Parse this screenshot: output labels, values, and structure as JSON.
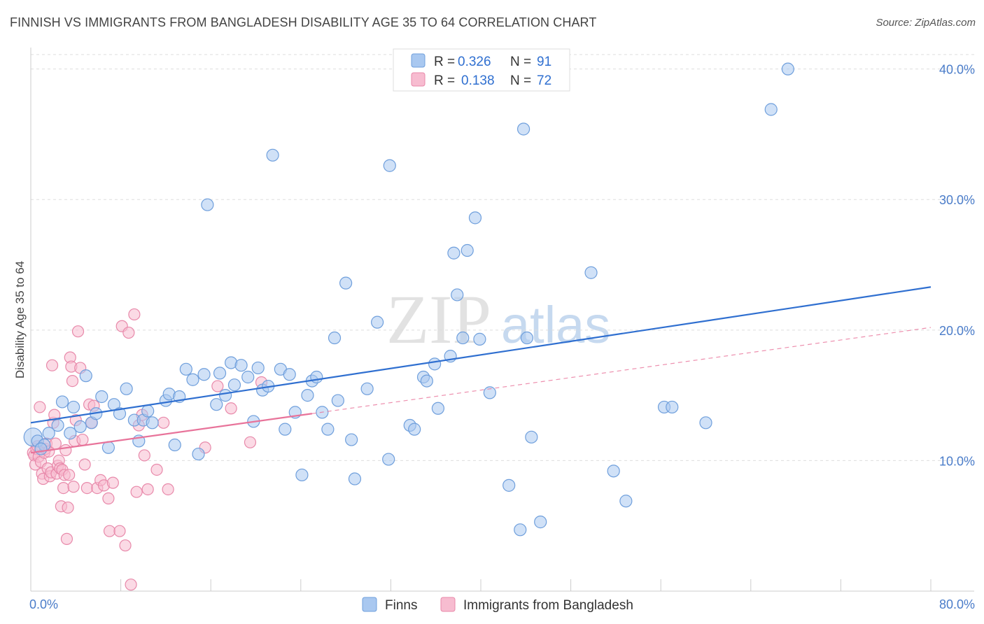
{
  "title": "FINNISH VS IMMIGRANTS FROM BANGLADESH DISABILITY AGE 35 TO 64 CORRELATION CHART",
  "source": "Source: ZipAtlas.com",
  "watermark": {
    "zip": "ZIP",
    "atlas": "atlas"
  },
  "colors": {
    "finns_fill": "#a9c8f0",
    "finns_stroke": "#6f9fdc",
    "finns_line": "#2f6fd0",
    "bangla_fill": "#f7bcd0",
    "bangla_stroke": "#e889aa",
    "bangla_line": "#e8739a",
    "grid": "#dddddd",
    "tick_text": "#4a7cc9"
  },
  "legend": {
    "row1": {
      "r_label": "R =",
      "r_value": "0.326",
      "n_label": "N =",
      "n_value": "91"
    },
    "row2": {
      "r_label": "R =",
      "r_value": "0.138",
      "n_label": "N =",
      "n_value": "72"
    }
  },
  "bottom_legend": {
    "finns": "Finns",
    "bangla": "Immigrants from Bangladesh"
  },
  "chart_data": {
    "type": "scatter",
    "title": "FINNISH VS IMMIGRANTS FROM BANGLADESH DISABILITY AGE 35 TO 64 CORRELATION CHART",
    "xlabel": "",
    "ylabel": "Disability Age 35 to 64",
    "xlim": [
      0,
      80
    ],
    "ylim": [
      0,
      41
    ],
    "x_tick_labels": [
      "0.0%",
      "80.0%"
    ],
    "y_ticks": [
      10,
      20,
      30,
      40
    ],
    "y_tick_labels": [
      "10.0%",
      "20.0%",
      "30.0%",
      "40.0%"
    ],
    "series": [
      {
        "name": "Finns",
        "R": 0.326,
        "N": 91,
        "trend": {
          "x0": 0,
          "y0": 12.9,
          "x1": 80,
          "y1": 23.3
        },
        "points": [
          [
            0.2,
            11.8
          ],
          [
            0.6,
            11.5
          ],
          [
            1.2,
            11.2
          ],
          [
            1.6,
            12.1
          ],
          [
            2.4,
            12.7
          ],
          [
            2.8,
            14.5
          ],
          [
            3.5,
            12.1
          ],
          [
            3.8,
            14.1
          ],
          [
            4.4,
            12.6
          ],
          [
            4.9,
            16.5
          ],
          [
            5.4,
            12.9
          ],
          [
            5.8,
            13.6
          ],
          [
            6.3,
            14.9
          ],
          [
            6.9,
            11.0
          ],
          [
            7.4,
            14.3
          ],
          [
            7.9,
            13.6
          ],
          [
            8.5,
            15.5
          ],
          [
            9.2,
            13.1
          ],
          [
            9.6,
            11.5
          ],
          [
            10.0,
            13.1
          ],
          [
            10.4,
            13.8
          ],
          [
            10.8,
            12.9
          ],
          [
            12.0,
            14.6
          ],
          [
            12.3,
            15.1
          ],
          [
            12.8,
            11.2
          ],
          [
            13.2,
            14.9
          ],
          [
            13.8,
            17.0
          ],
          [
            14.4,
            16.2
          ],
          [
            14.9,
            10.5
          ],
          [
            15.4,
            16.6
          ],
          [
            15.7,
            29.6
          ],
          [
            16.5,
            14.3
          ],
          [
            16.8,
            16.7
          ],
          [
            17.3,
            15.0
          ],
          [
            17.8,
            17.5
          ],
          [
            18.1,
            15.8
          ],
          [
            18.7,
            17.3
          ],
          [
            19.3,
            16.4
          ],
          [
            19.8,
            13.0
          ],
          [
            20.2,
            17.1
          ],
          [
            20.6,
            15.4
          ],
          [
            21.1,
            15.7
          ],
          [
            21.5,
            33.4
          ],
          [
            22.2,
            17.0
          ],
          [
            22.6,
            12.4
          ],
          [
            23.0,
            16.6
          ],
          [
            23.5,
            13.7
          ],
          [
            24.1,
            8.9
          ],
          [
            24.6,
            15.0
          ],
          [
            25.0,
            16.1
          ],
          [
            25.4,
            16.4
          ],
          [
            25.9,
            13.7
          ],
          [
            26.4,
            12.4
          ],
          [
            27.0,
            19.4
          ],
          [
            27.3,
            14.6
          ],
          [
            28.0,
            23.6
          ],
          [
            28.5,
            11.6
          ],
          [
            28.8,
            8.6
          ],
          [
            29.9,
            15.5
          ],
          [
            30.8,
            20.6
          ],
          [
            31.8,
            10.1
          ],
          [
            31.9,
            32.6
          ],
          [
            33.7,
            12.7
          ],
          [
            34.1,
            12.4
          ],
          [
            34.9,
            16.4
          ],
          [
            35.2,
            16.1
          ],
          [
            35.9,
            17.4
          ],
          [
            36.2,
            14.0
          ],
          [
            37.3,
            18.0
          ],
          [
            37.6,
            25.9
          ],
          [
            37.9,
            22.7
          ],
          [
            38.4,
            19.4
          ],
          [
            38.8,
            26.1
          ],
          [
            39.5,
            28.6
          ],
          [
            39.9,
            19.3
          ],
          [
            40.8,
            15.2
          ],
          [
            42.5,
            8.1
          ],
          [
            43.5,
            4.7
          ],
          [
            43.8,
            35.4
          ],
          [
            44.1,
            19.4
          ],
          [
            44.5,
            11.8
          ],
          [
            45.3,
            5.3
          ],
          [
            49.8,
            24.4
          ],
          [
            51.8,
            9.2
          ],
          [
            52.9,
            6.9
          ],
          [
            56.3,
            14.1
          ],
          [
            57.0,
            14.1
          ],
          [
            60.0,
            12.9
          ],
          [
            65.8,
            36.9
          ],
          [
            67.3,
            40.0
          ],
          [
            0.9,
            10.9
          ]
        ]
      },
      {
        "name": "Immigrants from Bangladesh",
        "R": 0.138,
        "N": 72,
        "trend": {
          "x0": 0,
          "y0": 10.6,
          "x1": 80,
          "y1": 20.2,
          "solid_to_x": 25
        },
        "points": [
          [
            0.2,
            10.6
          ],
          [
            0.3,
            10.4
          ],
          [
            0.4,
            9.7
          ],
          [
            0.5,
            10.9
          ],
          [
            0.6,
            11.1
          ],
          [
            0.7,
            10.3
          ],
          [
            0.8,
            14.1
          ],
          [
            0.9,
            9.9
          ],
          [
            1.0,
            9.0
          ],
          [
            1.1,
            8.6
          ],
          [
            1.2,
            10.6
          ],
          [
            1.3,
            10.9
          ],
          [
            1.4,
            11.3
          ],
          [
            1.5,
            9.4
          ],
          [
            1.6,
            10.7
          ],
          [
            1.7,
            8.8
          ],
          [
            1.8,
            9.1
          ],
          [
            1.9,
            17.3
          ],
          [
            2.0,
            12.9
          ],
          [
            2.1,
            13.5
          ],
          [
            2.2,
            11.3
          ],
          [
            2.3,
            9.0
          ],
          [
            2.4,
            9.6
          ],
          [
            2.5,
            10.0
          ],
          [
            2.6,
            9.4
          ],
          [
            2.7,
            6.5
          ],
          [
            2.8,
            9.3
          ],
          [
            2.9,
            7.9
          ],
          [
            3.0,
            8.9
          ],
          [
            3.1,
            10.8
          ],
          [
            3.2,
            4.0
          ],
          [
            3.3,
            6.4
          ],
          [
            3.4,
            8.9
          ],
          [
            3.5,
            17.9
          ],
          [
            3.6,
            17.2
          ],
          [
            3.7,
            16.1
          ],
          [
            3.8,
            8.0
          ],
          [
            3.9,
            11.5
          ],
          [
            4.0,
            13.1
          ],
          [
            4.2,
            19.9
          ],
          [
            4.4,
            17.1
          ],
          [
            4.6,
            11.6
          ],
          [
            4.8,
            9.7
          ],
          [
            5.0,
            7.9
          ],
          [
            5.2,
            14.3
          ],
          [
            5.4,
            12.9
          ],
          [
            5.6,
            14.2
          ],
          [
            5.9,
            7.9
          ],
          [
            6.2,
            8.5
          ],
          [
            6.5,
            8.1
          ],
          [
            6.9,
            7.1
          ],
          [
            7.0,
            4.6
          ],
          [
            7.3,
            8.3
          ],
          [
            7.9,
            4.6
          ],
          [
            8.1,
            20.3
          ],
          [
            8.4,
            3.5
          ],
          [
            8.7,
            19.8
          ],
          [
            8.9,
            0.5
          ],
          [
            9.2,
            21.2
          ],
          [
            9.4,
            7.6
          ],
          [
            9.6,
            12.7
          ],
          [
            9.9,
            13.5
          ],
          [
            10.1,
            10.4
          ],
          [
            10.4,
            7.8
          ],
          [
            11.2,
            9.3
          ],
          [
            11.8,
            12.9
          ],
          [
            12.2,
            7.8
          ],
          [
            15.5,
            11.0
          ],
          [
            16.6,
            15.7
          ],
          [
            17.8,
            14.0
          ],
          [
            19.5,
            11.4
          ],
          [
            20.5,
            16.0
          ]
        ]
      }
    ]
  }
}
